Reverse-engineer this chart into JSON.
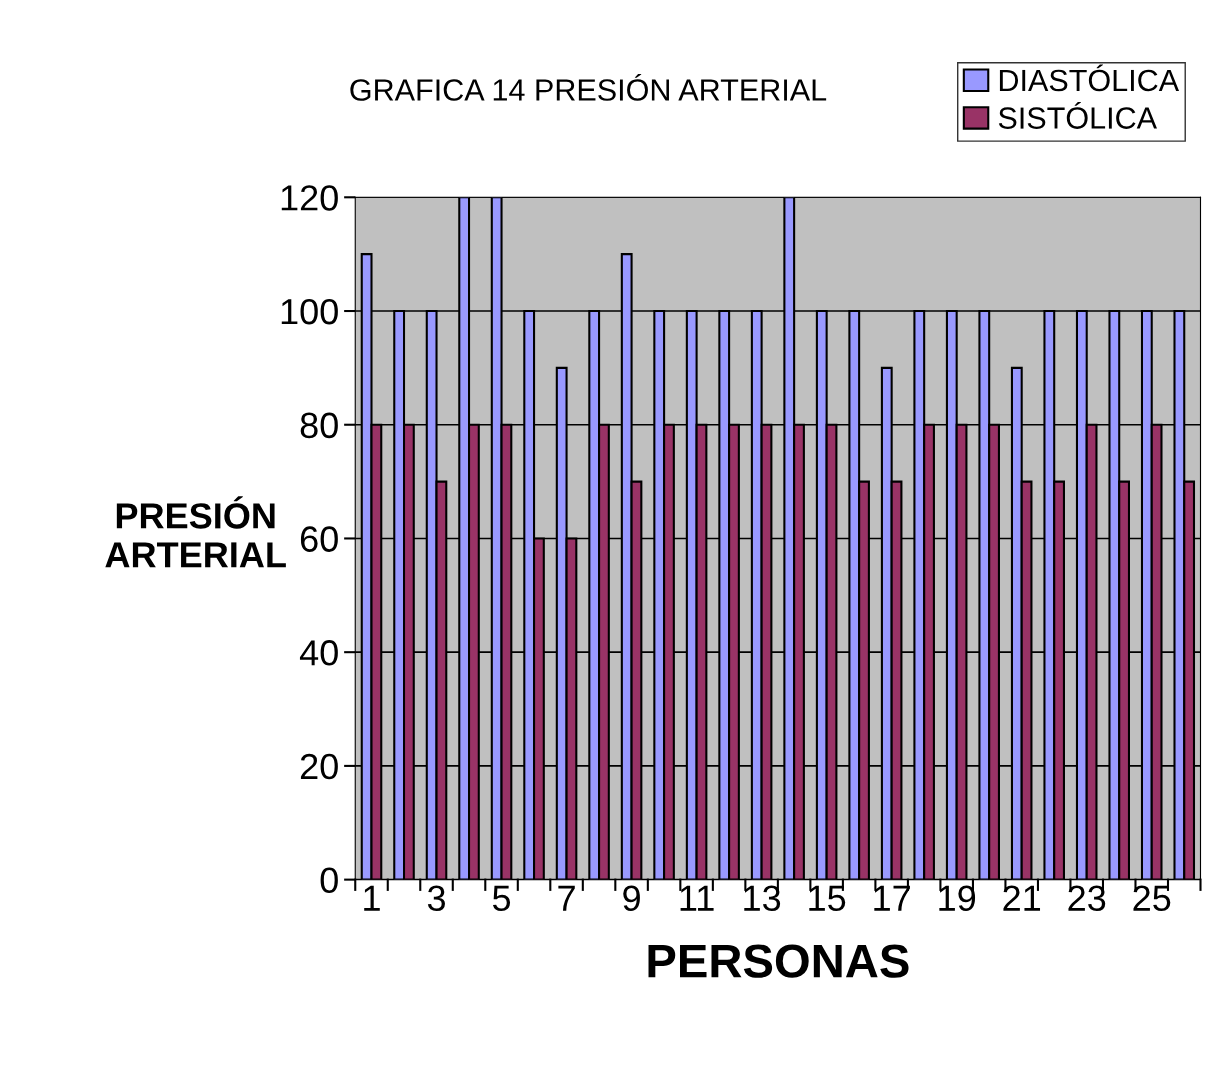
{
  "chart_data": {
    "type": "bar",
    "title": "GRAFICA 14 PRESIÓN ARTERIAL",
    "xlabel": "PERSONAS",
    "ylabel": "PRESIÓN\nARTERIAL",
    "categories": [
      "1",
      null,
      "3",
      null,
      "5",
      null,
      "7",
      null,
      "9",
      null,
      "11",
      null,
      "13",
      null,
      "15",
      null,
      "17",
      null,
      "19",
      null,
      "21",
      null,
      "23",
      null,
      "25",
      null
    ],
    "series": [
      {
        "name": "DIASTÓLICA",
        "color": "#9999ff",
        "values": [
          110,
          100,
          100,
          120,
          120,
          100,
          90,
          100,
          110,
          100,
          100,
          100,
          100,
          120,
          100,
          100,
          90,
          100,
          100,
          100,
          90,
          100,
          100,
          100,
          100,
          100
        ]
      },
      {
        "name": "SISTÓLICA",
        "color": "#993366",
        "values": [
          80,
          80,
          70,
          80,
          80,
          60,
          60,
          80,
          70,
          80,
          80,
          80,
          80,
          80,
          80,
          70,
          70,
          80,
          80,
          80,
          70,
          70,
          80,
          70,
          80,
          70
        ]
      }
    ],
    "ylim": [
      0,
      120
    ],
    "yticks": [
      0,
      20,
      40,
      60,
      80,
      100,
      120
    ],
    "grid": "y",
    "legend": "top right"
  }
}
